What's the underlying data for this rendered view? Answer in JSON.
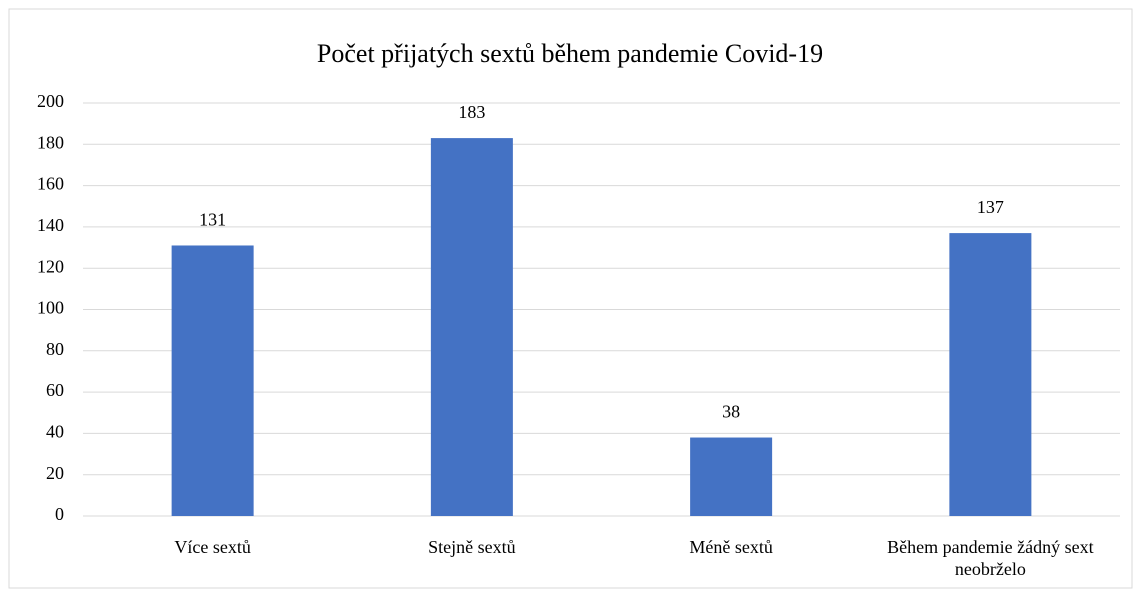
{
  "chart_data": {
    "type": "bar",
    "title": "Počet přijatých sextů během pandemie Covid-19",
    "categories": [
      "Více sextů",
      "Stejně sextů",
      "Méně sextů",
      "Během pandemie žádný sext neobrželo"
    ],
    "values": [
      131,
      183,
      38,
      137
    ],
    "color": "#4472c4",
    "ylim": [
      0,
      200
    ],
    "yticks": [
      0,
      20,
      40,
      60,
      80,
      100,
      120,
      140,
      160,
      180,
      200
    ],
    "grid": true
  }
}
